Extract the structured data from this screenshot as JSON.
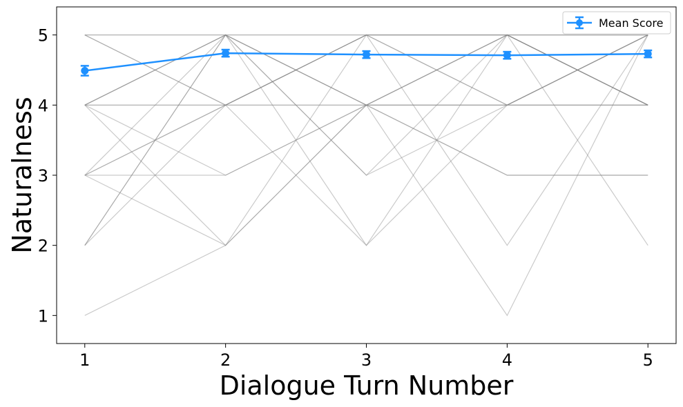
{
  "chart_data": {
    "type": "line",
    "title": "",
    "xlabel": "Dialogue Turn Number",
    "ylabel": "Naturalness",
    "x": [
      1,
      2,
      3,
      4,
      5
    ],
    "xlim": [
      0.8,
      5.2
    ],
    "ylim": [
      0.6,
      5.4
    ],
    "xticks": [
      1,
      2,
      3,
      4,
      5
    ],
    "yticks": [
      1,
      2,
      3,
      4,
      5
    ],
    "grid": false,
    "legend": {
      "placement": "top-right",
      "entries": [
        "Mean Score"
      ]
    },
    "series": [
      {
        "name": "Mean Score",
        "values": [
          4.49,
          4.74,
          4.72,
          4.71,
          4.73
        ],
        "errors": [
          0.07,
          0.05,
          0.05,
          0.05,
          0.05
        ],
        "color": "#1e90ff",
        "marker": "circle"
      }
    ],
    "individual_trajectories": [
      [
        5,
        5,
        5,
        5,
        5
      ],
      [
        4,
        4,
        4,
        4,
        4
      ],
      [
        5,
        4,
        5,
        4,
        5
      ],
      [
        4,
        5,
        4,
        5,
        4
      ],
      [
        4,
        5,
        5,
        5,
        5
      ],
      [
        5,
        5,
        4,
        5,
        4
      ],
      [
        4,
        4,
        5,
        4,
        5
      ],
      [
        5,
        4,
        4,
        4,
        4
      ],
      [
        3,
        5,
        3,
        5,
        4
      ],
      [
        2,
        4,
        5,
        2,
        5
      ],
      [
        2,
        5,
        3,
        4,
        5
      ],
      [
        4,
        2,
        5,
        5,
        4
      ],
      [
        3,
        2,
        4,
        4,
        5
      ],
      [
        4,
        5,
        4,
        5,
        4
      ],
      [
        3,
        4,
        5,
        5,
        5
      ],
      [
        3,
        3,
        4,
        3,
        3
      ],
      [
        1,
        2,
        4,
        1,
        5
      ],
      [
        2,
        5,
        2,
        4,
        4
      ],
      [
        3,
        4,
        2,
        5,
        2
      ],
      [
        4,
        3,
        4,
        3,
        3
      ]
    ],
    "trajectory_color": "#808080"
  }
}
